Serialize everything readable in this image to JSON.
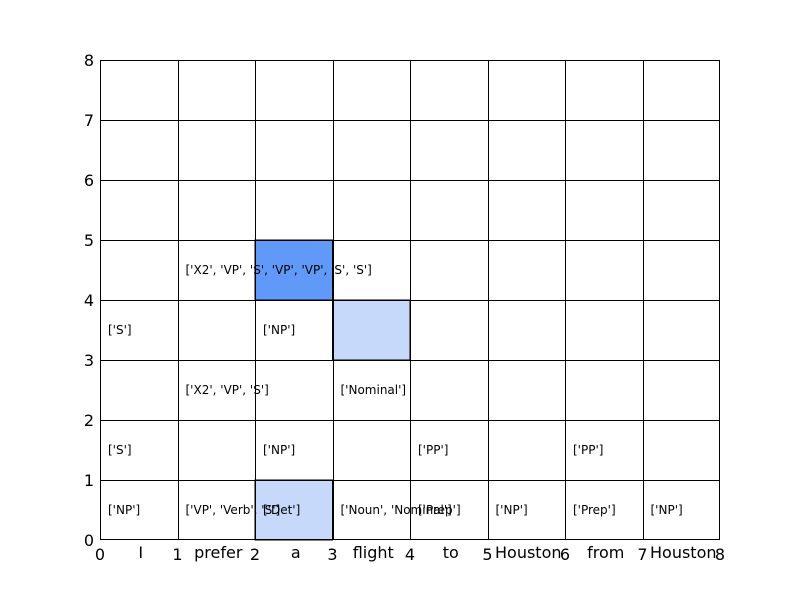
{
  "chart_data": {
    "type": "cky-chart-grid",
    "xlim": [
      0,
      8
    ],
    "ylim": [
      0,
      8
    ],
    "x_ticks": [
      "0",
      "1",
      "2",
      "3",
      "4",
      "5",
      "6",
      "7",
      "8"
    ],
    "y_ticks": [
      "0",
      "1",
      "2",
      "3",
      "4",
      "5",
      "6",
      "7",
      "8"
    ],
    "words": [
      "I",
      "prefer",
      "a",
      "flight",
      "to",
      "Houston",
      "from",
      "Houston"
    ],
    "highlighted_cells": [
      {
        "col": 2,
        "row": 4,
        "color": "#6199f9"
      },
      {
        "col": 3,
        "row": 3,
        "color": "#c6d9fa"
      },
      {
        "col": 2,
        "row": 0,
        "color": "#c6d9fa"
      }
    ],
    "cell_labels": [
      {
        "col": 0,
        "row": 0,
        "text": "['NP']"
      },
      {
        "col": 1,
        "row": 0,
        "text": "['VP', 'Verb', 'S']"
      },
      {
        "col": 2,
        "row": 0,
        "text": "['Det']"
      },
      {
        "col": 3,
        "row": 0,
        "text": "['Noun', 'Nominal']"
      },
      {
        "col": 4,
        "row": 0,
        "text": "['Prep']"
      },
      {
        "col": 5,
        "row": 0,
        "text": "['NP']"
      },
      {
        "col": 6,
        "row": 0,
        "text": "['Prep']"
      },
      {
        "col": 7,
        "row": 0,
        "text": "['NP']"
      },
      {
        "col": 0,
        "row": 1,
        "text": "['S']"
      },
      {
        "col": 2,
        "row": 1,
        "text": "['NP']"
      },
      {
        "col": 4,
        "row": 1,
        "text": "['PP']"
      },
      {
        "col": 6,
        "row": 1,
        "text": "['PP']"
      },
      {
        "col": 1,
        "row": 2,
        "text": "['X2', 'VP', 'S']"
      },
      {
        "col": 3,
        "row": 2,
        "text": "['Nominal']"
      },
      {
        "col": 0,
        "row": 3,
        "text": "['S']"
      },
      {
        "col": 2,
        "row": 3,
        "text": "['NP']"
      },
      {
        "col": 1,
        "row": 4,
        "text": "['X2', 'VP', 'S', 'VP', 'VP', 'S', 'S']"
      }
    ]
  }
}
